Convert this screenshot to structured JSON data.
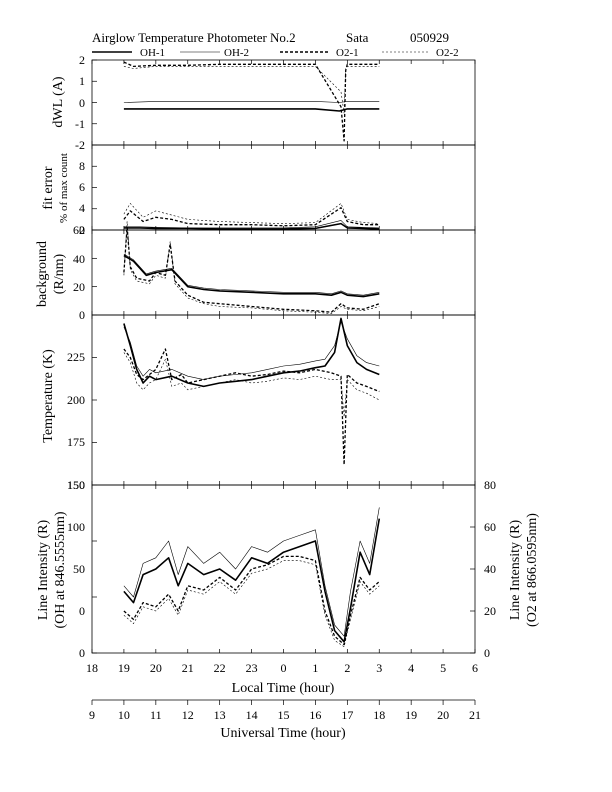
{
  "figure": {
    "title_main": "Airglow Temperature Photometer No.2",
    "title_site": "Sata",
    "title_date": "050929",
    "legend": [
      "OH-1",
      "OH-2",
      "O2-1",
      "O2-2"
    ]
  },
  "chart_data": [
    {
      "type": "line",
      "ylabel": "dWL  (A)",
      "ylim": [
        -2,
        2
      ],
      "yticks": [
        "2",
        "1",
        "0",
        "-1",
        "-2"
      ],
      "series": [
        {
          "name": "OH-1",
          "x": [
            19,
            20,
            21,
            22,
            23,
            24,
            25,
            25.75,
            26,
            27
          ],
          "y": [
            -0.3,
            -0.3,
            -0.3,
            -0.3,
            -0.3,
            -0.3,
            -0.3,
            -0.4,
            -0.3,
            -0.3
          ]
        },
        {
          "name": "OH-2",
          "x": [
            19,
            20,
            21,
            22,
            23,
            24,
            25,
            25.75,
            26,
            27
          ],
          "y": [
            0.0,
            0.05,
            0.05,
            0.05,
            0.05,
            0.05,
            0.05,
            0.0,
            0.05,
            0.05
          ]
        },
        {
          "name": "O2-1",
          "x": [
            19,
            19.3,
            20,
            21,
            22,
            23,
            24,
            25,
            25.8,
            25.9,
            25.95,
            26,
            27
          ],
          "y": [
            1.9,
            1.7,
            1.75,
            1.75,
            1.8,
            1.8,
            1.8,
            1.8,
            -0.2,
            -1.8,
            1.5,
            1.8,
            1.8
          ]
        },
        {
          "name": "O2-2",
          "x": [
            19,
            19.3,
            20,
            21,
            22,
            23,
            24,
            25,
            25.8,
            25.9,
            25.95,
            26,
            27
          ],
          "y": [
            1.7,
            1.6,
            1.7,
            1.7,
            1.7,
            1.7,
            1.7,
            1.7,
            0.5,
            -0.5,
            1.6,
            1.7,
            1.7
          ]
        }
      ]
    },
    {
      "type": "line",
      "ylabel": [
        "fit error",
        "% of max count"
      ],
      "ylim": [
        0,
        8
      ],
      "yticks": [
        "8",
        "6",
        "4",
        "2",
        "0"
      ],
      "series": [
        {
          "name": "OH-1",
          "x": [
            19,
            19.5,
            20,
            21,
            22,
            23,
            24,
            25,
            25.8,
            26,
            27
          ],
          "y": [
            0.2,
            0.2,
            0.15,
            0.15,
            0.1,
            0.1,
            0.1,
            0.15,
            0.6,
            0.2,
            0.1
          ]
        },
        {
          "name": "OH-2",
          "x": [
            19,
            19.5,
            20,
            21,
            22,
            23,
            24,
            25,
            25.8,
            26,
            27
          ],
          "y": [
            0.3,
            0.3,
            0.25,
            0.2,
            0.2,
            0.2,
            0.2,
            0.3,
            0.9,
            0.3,
            0.2
          ]
        },
        {
          "name": "O2-1",
          "x": [
            19,
            19.2,
            19.6,
            20,
            20.5,
            21,
            22,
            23,
            24,
            25,
            25.8,
            26,
            26.5,
            27
          ],
          "y": [
            1.0,
            1.8,
            0.8,
            1.2,
            1.0,
            0.6,
            0.5,
            0.5,
            0.4,
            0.5,
            2.1,
            0.8,
            0.5,
            0.5
          ]
        },
        {
          "name": "O2-2",
          "x": [
            19,
            19.2,
            19.6,
            20,
            20.5,
            21,
            22,
            23,
            24,
            25,
            25.8,
            26,
            26.5,
            27
          ],
          "y": [
            1.5,
            2.5,
            1.2,
            1.8,
            1.4,
            1.0,
            0.8,
            0.7,
            0.6,
            0.7,
            2.5,
            1.0,
            0.7,
            0.6
          ]
        }
      ]
    },
    {
      "type": "line",
      "ylabel": [
        "background",
        "(R/nm)"
      ],
      "ylim": [
        0,
        60
      ],
      "yticks": [
        "60",
        "40",
        "20",
        "0"
      ],
      "series": [
        {
          "name": "OH-1",
          "x": [
            19,
            19.3,
            19.7,
            20,
            20.5,
            21,
            21.5,
            22,
            23,
            24,
            25,
            25.5,
            25.8,
            26,
            26.5,
            27
          ],
          "y": [
            42,
            38,
            28,
            30,
            32,
            20,
            18,
            17,
            16,
            15,
            15,
            14,
            16,
            14,
            13,
            15
          ]
        },
        {
          "name": "OH-2",
          "x": [
            19,
            19.3,
            19.7,
            20,
            20.5,
            21,
            21.5,
            22,
            23,
            24,
            25,
            25.5,
            25.8,
            26,
            26.5,
            27
          ],
          "y": [
            43,
            39,
            29,
            31,
            33,
            21,
            19,
            18,
            17,
            16,
            16,
            15,
            17,
            15,
            14,
            16
          ]
        },
        {
          "name": "O2-1",
          "x": [
            19,
            19.1,
            19.2,
            19.4,
            19.8,
            20,
            20.3,
            20.45,
            20.6,
            21,
            21.5,
            22,
            23,
            24,
            25,
            25.5,
            25.8,
            26,
            26.5,
            27
          ],
          "y": [
            30,
            62,
            34,
            26,
            24,
            30,
            28,
            50,
            24,
            14,
            9,
            8,
            6,
            4,
            3,
            2,
            8,
            5,
            4,
            8
          ]
        },
        {
          "name": "O2-2",
          "x": [
            19,
            19.1,
            19.2,
            19.4,
            19.8,
            20,
            20.3,
            20.45,
            20.6,
            21,
            21.5,
            22,
            23,
            24,
            25,
            25.5,
            25.8,
            26,
            26.5,
            27
          ],
          "y": [
            28,
            66,
            32,
            24,
            22,
            28,
            26,
            52,
            22,
            12,
            8,
            6,
            5,
            3,
            2,
            1,
            6,
            4,
            3,
            6
          ]
        }
      ]
    },
    {
      "type": "line",
      "ylabel": "Temperature (K)",
      "ylim": [
        150,
        250
      ],
      "yticks": [
        "225",
        "200",
        "175",
        "150"
      ],
      "series": [
        {
          "name": "OH-1",
          "x": [
            19,
            19.2,
            19.4,
            19.6,
            19.8,
            20,
            20.5,
            21,
            21.5,
            22,
            22.5,
            23,
            23.5,
            24,
            24.5,
            25,
            25.3,
            25.6,
            25.8,
            26,
            26.3,
            26.6,
            27
          ],
          "y": [
            245,
            232,
            218,
            210,
            214,
            212,
            214,
            210,
            208,
            210,
            211,
            212,
            214,
            216,
            217,
            219,
            220,
            228,
            248,
            232,
            222,
            218,
            215
          ]
        },
        {
          "name": "OH-2",
          "x": [
            19,
            19.2,
            19.4,
            19.6,
            19.8,
            20,
            20.5,
            21,
            21.5,
            22,
            22.5,
            23,
            23.5,
            24,
            24.5,
            25,
            25.3,
            25.6,
            25.8,
            26,
            26.3,
            26.6,
            27
          ],
          "y": [
            243,
            234,
            220,
            214,
            218,
            216,
            218,
            214,
            212,
            214,
            215,
            216,
            218,
            220,
            221,
            223,
            224,
            232,
            246,
            236,
            226,
            222,
            220
          ]
        },
        {
          "name": "O2-1",
          "x": [
            19,
            19.2,
            19.4,
            19.6,
            19.8,
            20,
            20.3,
            20.5,
            20.8,
            21,
            21.5,
            22,
            22.5,
            23,
            23.5,
            24,
            24.5,
            25,
            25.5,
            25.8,
            25.9,
            26,
            26.3,
            26.6,
            27
          ],
          "y": [
            230,
            225,
            215,
            212,
            215,
            218,
            230,
            212,
            215,
            210,
            212,
            214,
            216,
            214,
            215,
            217,
            216,
            218,
            216,
            214,
            162,
            215,
            210,
            208,
            205
          ]
        },
        {
          "name": "O2-2",
          "x": [
            19,
            19.2,
            19.4,
            19.6,
            19.8,
            20,
            20.3,
            20.5,
            20.8,
            21,
            21.5,
            22,
            22.5,
            23,
            23.5,
            24,
            24.5,
            25,
            25.5,
            25.8,
            25.9,
            26,
            26.3,
            26.6,
            27
          ],
          "y": [
            228,
            222,
            210,
            206,
            210,
            212,
            224,
            208,
            210,
            206,
            208,
            210,
            212,
            210,
            211,
            213,
            212,
            214,
            212,
            212,
            190,
            212,
            206,
            204,
            200
          ]
        }
      ]
    },
    {
      "type": "line",
      "xlabel": "Local Time (hour)",
      "xlabel2": "Universal Time (hour)",
      "xlim": [
        18,
        30
      ],
      "xticks": [
        "18",
        "19",
        "20",
        "21",
        "22",
        "23",
        "0",
        "1",
        "2",
        "3",
        "4",
        "5",
        "6"
      ],
      "xticks2": [
        "9",
        "10",
        "11",
        "12",
        "13",
        "14",
        "15",
        "16",
        "17",
        "18",
        "19",
        "20",
        "21"
      ],
      "ylabel": [
        "Line Intensity (R)",
        "(OH at 846.5555nm)"
      ],
      "ylim": [
        0,
        150
      ],
      "yticks": [
        "150",
        "100",
        "50",
        "0"
      ],
      "y2label": [
        "Line Intensity (R)",
        "(O2 at 866.0595nm)"
      ],
      "y2lim": [
        0,
        80
      ],
      "y2ticks": [
        "80",
        "60",
        "40",
        "20",
        "0"
      ],
      "series": [
        {
          "name": "OH-1",
          "x": [
            19,
            19.3,
            19.6,
            20,
            20.4,
            20.7,
            21,
            21.5,
            22,
            22.5,
            23,
            23.5,
            24,
            24.5,
            25,
            25.3,
            25.6,
            25.9,
            26.1,
            26.4,
            26.7,
            27
          ],
          "y": [
            55,
            45,
            70,
            75,
            85,
            60,
            80,
            70,
            75,
            65,
            85,
            80,
            90,
            95,
            100,
            55,
            20,
            10,
            40,
            90,
            70,
            120
          ]
        },
        {
          "name": "OH-2",
          "x": [
            19,
            19.3,
            19.6,
            20,
            20.4,
            20.7,
            21,
            21.5,
            22,
            22.5,
            23,
            23.5,
            24,
            24.5,
            25,
            25.3,
            25.6,
            25.9,
            26.1,
            26.4,
            26.7,
            27
          ],
          "y": [
            60,
            50,
            80,
            85,
            100,
            70,
            95,
            80,
            90,
            75,
            95,
            90,
            100,
            105,
            110,
            60,
            25,
            15,
            55,
            100,
            80,
            130
          ]
        },
        {
          "name": "O2-1",
          "x": [
            19,
            19.3,
            19.6,
            20,
            20.4,
            20.7,
            21,
            21.5,
            22,
            22.5,
            23,
            23.5,
            24,
            24.5,
            25,
            25.3,
            25.6,
            25.9,
            26.1,
            26.4,
            26.7,
            27
          ],
          "y": [
            20,
            16,
            24,
            22,
            28,
            20,
            32,
            30,
            36,
            30,
            40,
            42,
            46,
            46,
            44,
            20,
            8,
            4,
            18,
            36,
            30,
            34
          ]
        },
        {
          "name": "O2-2",
          "x": [
            19,
            19.3,
            19.6,
            20,
            20.4,
            20.7,
            21,
            21.5,
            22,
            22.5,
            23,
            23.5,
            24,
            24.5,
            25,
            25.3,
            25.6,
            25.9,
            26.1,
            26.4,
            26.7,
            27
          ],
          "y": [
            18,
            14,
            22,
            20,
            26,
            18,
            30,
            28,
            34,
            28,
            38,
            40,
            44,
            44,
            42,
            18,
            6,
            3,
            16,
            34,
            28,
            32
          ]
        }
      ]
    }
  ]
}
